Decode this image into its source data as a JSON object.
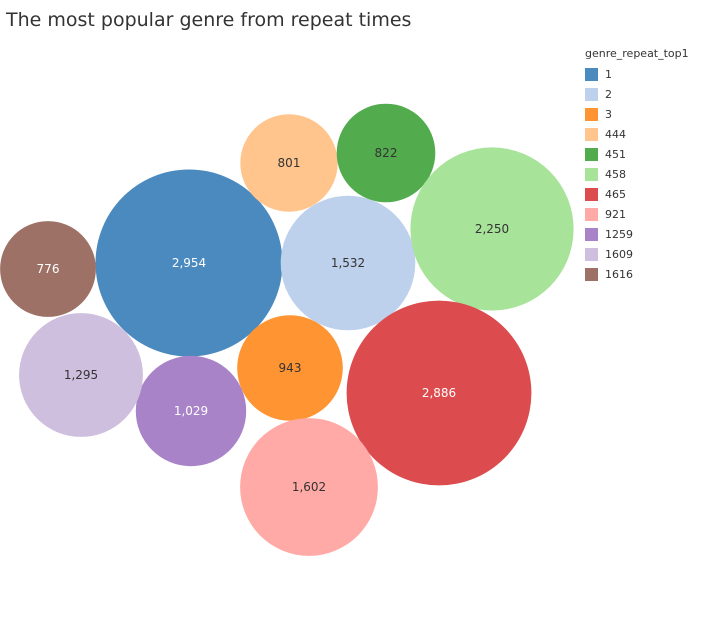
{
  "chart_data": {
    "type": "bubble",
    "title": "The most popular genre from repeat times",
    "legend_title": "genre_repeat_top1",
    "legend_position": "top-right",
    "series": [
      {
        "category": "1",
        "value": 2954,
        "label": "2,954",
        "color": "#4A8ABF",
        "label_color": "#ffffff"
      },
      {
        "category": "2",
        "value": 1532,
        "label": "1,532",
        "color": "#BDD0EC",
        "label_color": "#333333"
      },
      {
        "category": "3",
        "value": 943,
        "label": "943",
        "color": "#FF9433",
        "label_color": "#333333"
      },
      {
        "category": "444",
        "value": 801,
        "label": "801",
        "color": "#FFC58D",
        "label_color": "#333333"
      },
      {
        "category": "451",
        "value": 822,
        "label": "822",
        "color": "#52AC4E",
        "label_color": "#333333"
      },
      {
        "category": "458",
        "value": 2250,
        "label": "2,250",
        "color": "#A8E39A",
        "label_color": "#333333"
      },
      {
        "category": "465",
        "value": 2886,
        "label": "2,886",
        "color": "#DC4B4D",
        "label_color": "#ffffff"
      },
      {
        "category": "921",
        "value": 1602,
        "label": "1,602",
        "color": "#FFAAA6",
        "label_color": "#333333"
      },
      {
        "category": "1259",
        "value": 1029,
        "label": "1,029",
        "color": "#A983C8",
        "label_color": "#ffffff"
      },
      {
        "category": "1609",
        "value": 1295,
        "label": "1,295",
        "color": "#CFBFDF",
        "label_color": "#333333"
      },
      {
        "category": "1616",
        "value": 776,
        "label": "776",
        "color": "#9E7167",
        "label_color": "#ffffff"
      }
    ]
  }
}
